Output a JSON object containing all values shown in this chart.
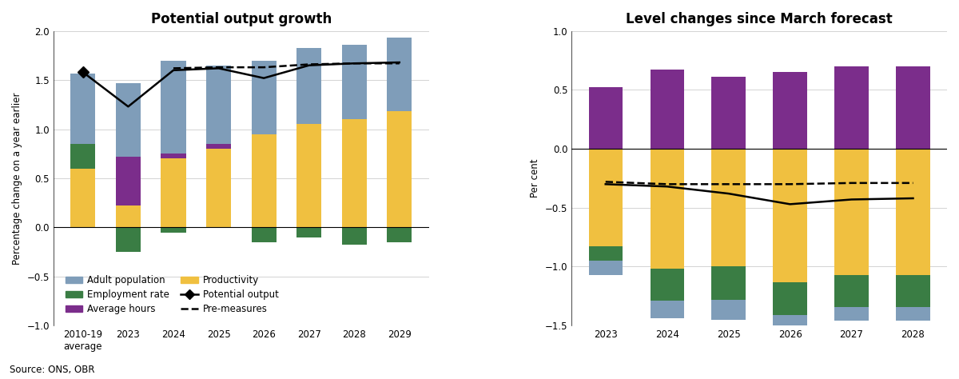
{
  "chart1": {
    "title": "Potential output growth",
    "ylabel": "Percentage change on a year earlier",
    "ylim": [
      -1.0,
      2.0
    ],
    "yticks": [
      -1.0,
      -0.5,
      0.0,
      0.5,
      1.0,
      1.5,
      2.0
    ],
    "categories": [
      "2010-19\naverage",
      "2023",
      "2024",
      "2025",
      "2026",
      "2027",
      "2028",
      "2029"
    ],
    "productivity": [
      0.6,
      0.22,
      0.7,
      0.8,
      0.95,
      1.05,
      1.1,
      1.18
    ],
    "average_hours": [
      0.0,
      0.5,
      0.05,
      0.05,
      0.0,
      0.0,
      0.0,
      0.0
    ],
    "employment_rate": [
      0.25,
      -0.25,
      -0.05,
      0.0,
      -0.15,
      -0.1,
      -0.18,
      -0.15
    ],
    "adult_population": [
      0.72,
      0.75,
      0.95,
      0.8,
      0.75,
      0.78,
      0.76,
      0.75
    ],
    "potential_output": [
      1.58,
      1.23,
      1.6,
      1.62,
      1.52,
      1.65,
      1.67,
      1.68
    ],
    "pre_measures": [
      null,
      null,
      1.62,
      1.63,
      1.63,
      1.66,
      1.67,
      1.67
    ]
  },
  "chart2": {
    "title": "Level changes since March forecast",
    "ylabel": "Per cent",
    "ylim": [
      -1.5,
      1.0
    ],
    "yticks": [
      -1.5,
      -1.0,
      -0.5,
      0.0,
      0.5,
      1.0
    ],
    "categories": [
      "2023",
      "2024",
      "2025",
      "2026",
      "2027",
      "2028"
    ],
    "adult_population": [
      -0.12,
      -0.15,
      -0.17,
      -0.13,
      -0.12,
      -0.12
    ],
    "employment_rate": [
      -0.12,
      -0.27,
      -0.28,
      -0.28,
      -0.27,
      -0.27
    ],
    "average_hours": [
      0.52,
      0.67,
      0.61,
      0.65,
      0.7,
      0.7
    ],
    "productivity": [
      -0.83,
      -1.02,
      -1.0,
      -1.13,
      -1.07,
      -1.07
    ],
    "potential_output": [
      -0.3,
      -0.32,
      -0.38,
      -0.47,
      -0.43,
      -0.42
    ],
    "pre_measures": [
      -0.28,
      -0.3,
      -0.3,
      -0.3,
      -0.29,
      -0.29
    ]
  },
  "colors": {
    "adult_population": "#7f9db9",
    "employment_rate": "#3a7d44",
    "average_hours": "#7b2d8b",
    "productivity": "#f0c040"
  },
  "source": "Source: ONS, OBR"
}
